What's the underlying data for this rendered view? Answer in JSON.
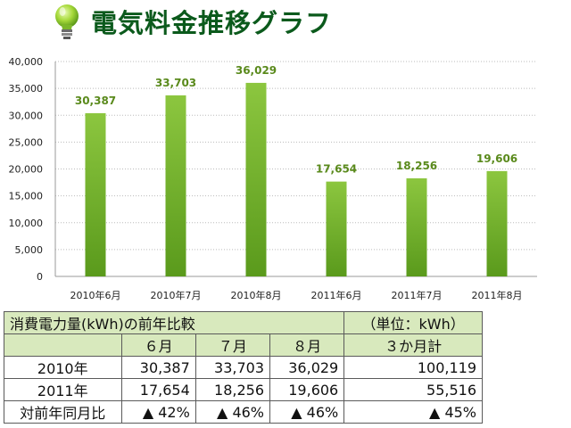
{
  "title": "電気料金推移グラフ",
  "chart_data": {
    "type": "bar",
    "categories": [
      "2010年6月",
      "2010年7月",
      "2010年8月",
      "2011年6月",
      "2011年7月",
      "2011年8月"
    ],
    "values": [
      30387,
      33703,
      36029,
      17654,
      18256,
      19606
    ],
    "value_labels": [
      "30,387",
      "33,703",
      "36,029",
      "17,654",
      "18,256",
      "19,606"
    ],
    "yticks": [
      "0",
      "5,000",
      "10,000",
      "15,000",
      "20,000",
      "25,000",
      "30,000",
      "35,000",
      "40,000"
    ],
    "ylim": [
      0,
      40000
    ],
    "grid": true,
    "colors": {
      "bar_top": "#8cc63f",
      "bar_bottom": "#5a9a1c",
      "value_label": "#5a8a1c",
      "grid": "#bbbbbb"
    }
  },
  "table": {
    "caption": "消費電力量(kWh)の前年比較",
    "unit": "（単位：kWh）",
    "columns": [
      "６月",
      "７月",
      "８月",
      "３か月計"
    ],
    "rows": [
      {
        "label": "2010年",
        "values": [
          "30,387",
          "33,703",
          "36,029",
          "100,119"
        ]
      },
      {
        "label": "2011年",
        "values": [
          "17,654",
          "18,256",
          "19,606",
          "55,516"
        ]
      },
      {
        "label": "対前年同月比",
        "values": [
          "▲ 42%",
          "▲ 46%",
          "▲ 46%",
          "▲ 45%"
        ]
      }
    ],
    "header_color": "#d8e9bd"
  }
}
